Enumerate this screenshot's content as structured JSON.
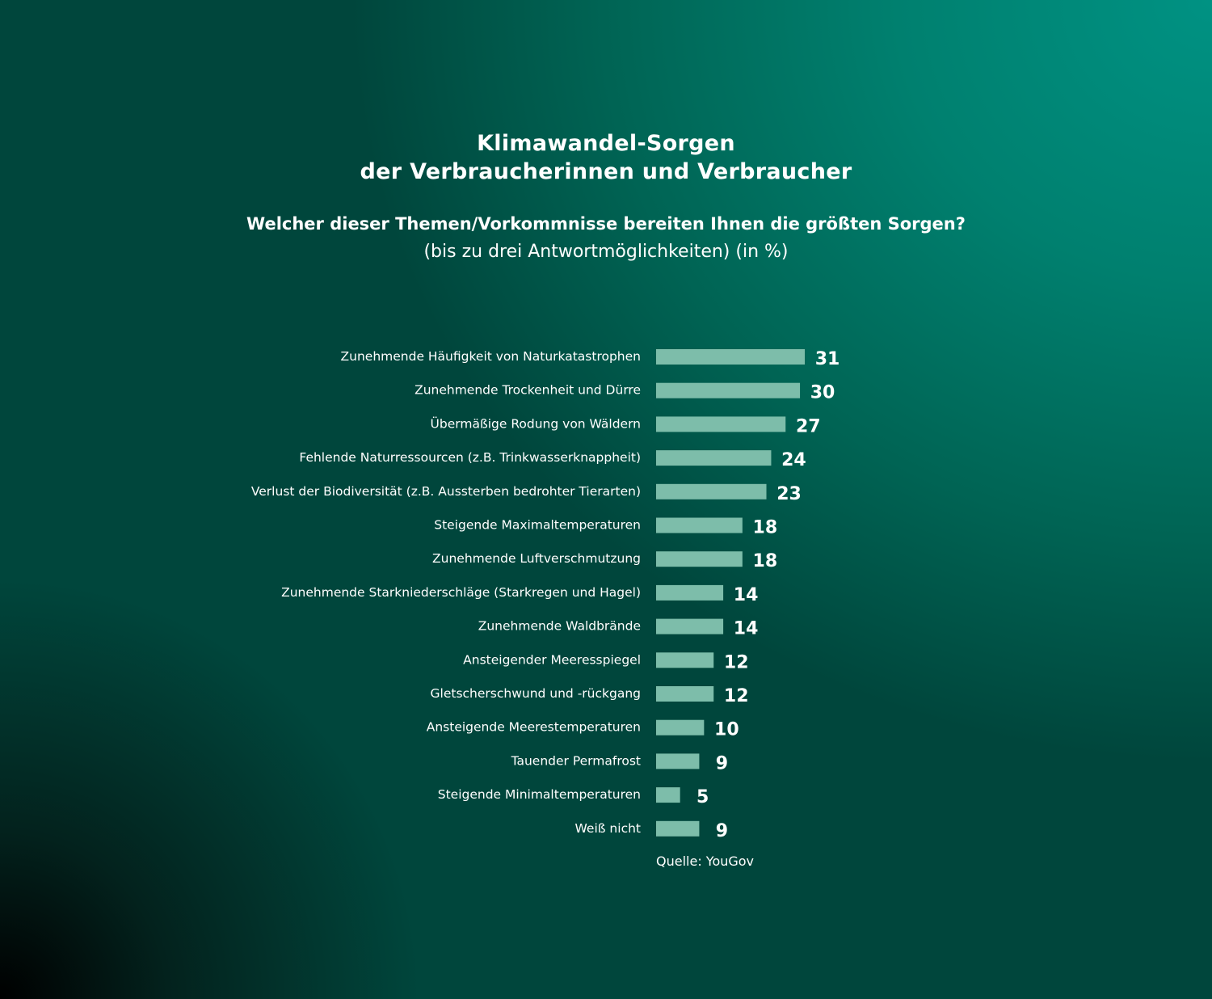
{
  "chart_data": {
    "type": "bar",
    "orientation": "horizontal",
    "title": "Klimawandel-Sorgen der Verbraucherinnen und Verbraucher",
    "title_lines": [
      "Klimawandel-Sorgen",
      "der Verbraucherinnen und Verbraucher"
    ],
    "question": "Welcher dieser Themen/Vorkommnisse bereiten Ihnen die größten Sorgen?",
    "note": "(bis zu drei Antwortmöglichkeiten) (in %)",
    "categories": [
      "Zunehmende Häufigkeit von Naturkatastrophen",
      "Zunehmende Trockenheit und Dürre",
      "Übermäßige Rodung von Wäldern",
      "Fehlende Naturressourcen (z.B. Trinkwasserknappheit)",
      "Verlust der Biodiversität (z.B. Aussterben bedrohter Tierarten)",
      "Steigende Maximaltemperaturen",
      "Zunehmende Luftverschmutzung",
      "Zunehmende Starkniederschläge (Starkregen und Hagel)",
      "Zunehmende Waldbrände",
      "Ansteigender Meeresspiegel",
      "Gletscherschwund und -rückgang",
      "Ansteigende Meerestemperaturen",
      "Tauender Permafrost",
      "Steigende Minimaltemperaturen",
      "Weiß nicht"
    ],
    "values": [
      31,
      30,
      27,
      24,
      23,
      18,
      18,
      14,
      14,
      12,
      12,
      10,
      9,
      5,
      9
    ],
    "xlim": [
      0,
      31
    ],
    "grid": false,
    "bar_color": "#7dbdaa",
    "source": "Quelle: YouGov"
  }
}
